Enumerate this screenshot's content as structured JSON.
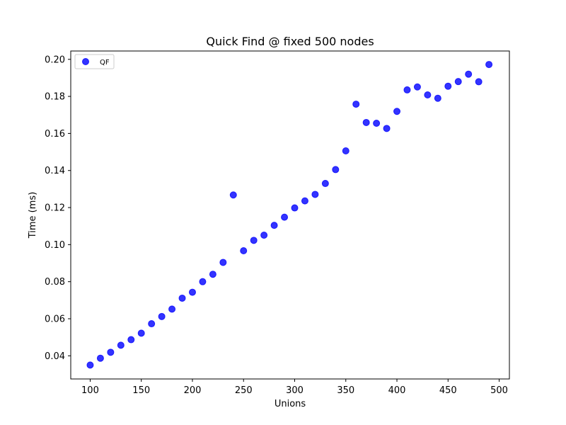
{
  "chart_data": {
    "type": "scatter",
    "title": "Quick Find @ fixed 500 nodes",
    "xlabel": "Unions",
    "ylabel": "Time (ms)",
    "xlim": [
      81,
      510
    ],
    "ylim": [
      0.0275,
      0.2045
    ],
    "xticks": [
      100,
      150,
      200,
      250,
      300,
      350,
      400,
      450,
      500
    ],
    "yticks": [
      0.04,
      0.06,
      0.08,
      0.1,
      0.12,
      0.14,
      0.16,
      0.18,
      0.2
    ],
    "ytick_labels": [
      "0.04",
      "0.06",
      "0.08",
      "0.10",
      "0.12",
      "0.14",
      "0.16",
      "0.18",
      "0.20"
    ],
    "grid": false,
    "legend_position": "upper-left",
    "series": [
      {
        "name": "QF",
        "color": "#0000ff",
        "points": [
          [
            100,
            0.035
          ],
          [
            110,
            0.0387
          ],
          [
            120,
            0.0419
          ],
          [
            130,
            0.0457
          ],
          [
            140,
            0.0487
          ],
          [
            150,
            0.0522
          ],
          [
            160,
            0.0573
          ],
          [
            170,
            0.0612
          ],
          [
            180,
            0.0652
          ],
          [
            190,
            0.0711
          ],
          [
            200,
            0.0743
          ],
          [
            210,
            0.08
          ],
          [
            220,
            0.084
          ],
          [
            230,
            0.0904
          ],
          [
            240,
            0.1268
          ],
          [
            250,
            0.0967
          ],
          [
            260,
            0.1023
          ],
          [
            270,
            0.1051
          ],
          [
            280,
            0.1104
          ],
          [
            290,
            0.1148
          ],
          [
            300,
            0.1198
          ],
          [
            310,
            0.1236
          ],
          [
            320,
            0.1271
          ],
          [
            330,
            0.133
          ],
          [
            340,
            0.1405
          ],
          [
            350,
            0.1506
          ],
          [
            360,
            0.1758
          ],
          [
            370,
            0.1659
          ],
          [
            380,
            0.1655
          ],
          [
            390,
            0.1627
          ],
          [
            400,
            0.1719
          ],
          [
            410,
            0.1835
          ],
          [
            420,
            0.1851
          ],
          [
            430,
            0.1808
          ],
          [
            440,
            0.179
          ],
          [
            450,
            0.1855
          ],
          [
            460,
            0.188
          ],
          [
            470,
            0.192
          ],
          [
            480,
            0.1879
          ],
          [
            490,
            0.1972
          ]
        ]
      }
    ]
  }
}
